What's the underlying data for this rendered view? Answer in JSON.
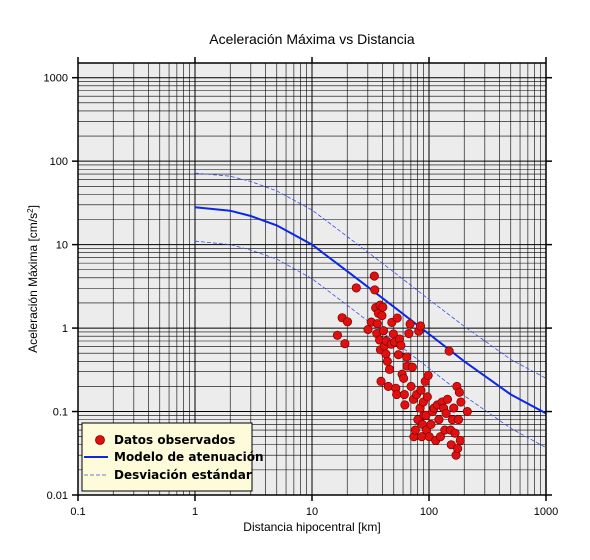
{
  "chart_data": {
    "type": "scatter",
    "title": "Aceleración Máxima vs Distancia",
    "xlabel": "Distancia hipocentral [km]",
    "ylabel_main": "Aceleración Máxima [cm/s",
    "ylabel_sup": "2",
    "ylabel_end": "]",
    "x_scale": "log",
    "y_scale": "log",
    "xlim": [
      0.1,
      1000
    ],
    "ylim": [
      0.01,
      1500
    ],
    "x_ticks": [
      {
        "value": 0.1,
        "label": "0.1"
      },
      {
        "value": 1,
        "label": "1"
      },
      {
        "value": 10,
        "label": "10"
      },
      {
        "value": 100,
        "label": "100"
      },
      {
        "value": 1000,
        "label": "1000"
      }
    ],
    "y_ticks": [
      {
        "value": 0.01,
        "label": "0.01"
      },
      {
        "value": 0.1,
        "label": "0.1"
      },
      {
        "value": 1,
        "label": "1"
      },
      {
        "value": 10,
        "label": "10"
      },
      {
        "value": 100,
        "label": "100"
      },
      {
        "value": 1000,
        "label": "1000"
      }
    ],
    "grid": true,
    "colors": {
      "plot_background": "#ececec",
      "grid": "#000000",
      "points": "#e01010",
      "model": "#0a28e6",
      "deviation": "#3a4fe8",
      "legend_background": "#fdfbd9"
    },
    "legend": {
      "placement": "bottom-left",
      "entries": [
        {
          "label": "Datos observados",
          "kind": "marker"
        },
        {
          "label": "Modelo de atenuación",
          "kind": "line"
        },
        {
          "label": "Desviación estándar",
          "kind": "dashed"
        }
      ]
    },
    "series": [
      {
        "name": "Datos observados",
        "kind": "scatter",
        "points": [
          [
            16.5,
            0.82
          ],
          [
            18.1,
            1.33
          ],
          [
            19.1,
            0.65
          ],
          [
            20.1,
            1.19
          ],
          [
            23.9,
            3.03
          ],
          [
            30.1,
            0.96
          ],
          [
            32.1,
            1.18
          ],
          [
            34.1,
            4.2
          ],
          [
            34.4,
            2.87
          ],
          [
            35.0,
            1.75
          ],
          [
            35.8,
            0.86
          ],
          [
            36.2,
            1.13
          ],
          [
            37.0,
            1.5
          ],
          [
            37.8,
            0.72
          ],
          [
            38.2,
            1.88
          ],
          [
            38.5,
            0.55
          ],
          [
            38.9,
            0.23
          ],
          [
            39.6,
            1.41
          ],
          [
            40.3,
            1.78
          ],
          [
            40.8,
            0.93
          ],
          [
            41.6,
            0.61
          ],
          [
            42.8,
            0.49
          ],
          [
            43.1,
            0.7
          ],
          [
            44.1,
            0.4
          ],
          [
            44.9,
            0.2
          ],
          [
            46.0,
            0.32
          ],
          [
            47.5,
            0.64
          ],
          [
            48.1,
            1.17
          ],
          [
            49.6,
            0.85
          ],
          [
            50.8,
            0.68
          ],
          [
            52.0,
            0.19
          ],
          [
            52.9,
            0.16
          ],
          [
            53.5,
            1.32
          ],
          [
            54.8,
            0.48
          ],
          [
            56.0,
            0.74
          ],
          [
            57.5,
            0.62
          ],
          [
            58.9,
            0.28
          ],
          [
            60.7,
            0.25
          ],
          [
            61.6,
            0.16
          ],
          [
            62.2,
            0.12
          ],
          [
            64.4,
            0.45
          ],
          [
            65.0,
            0.35
          ],
          [
            67.3,
            0.86
          ],
          [
            68.9,
            1.12
          ],
          [
            70.3,
            0.2
          ],
          [
            72.1,
            0.34
          ],
          [
            73.6,
            0.14
          ],
          [
            74.3,
            0.05
          ],
          [
            76.5,
            0.06
          ],
          [
            78.4,
            0.16
          ],
          [
            80.4,
            0.08
          ],
          [
            81.8,
            0.92
          ],
          [
            83.9,
            0.11
          ],
          [
            84.6,
            1.06
          ],
          [
            85.3,
            0.18
          ],
          [
            86.6,
            0.05
          ],
          [
            87.9,
            0.07
          ],
          [
            89.5,
            0.13
          ],
          [
            90.5,
            0.09
          ],
          [
            92.9,
            0.23
          ],
          [
            94.2,
            0.09
          ],
          [
            95.3,
            0.06
          ],
          [
            96.8,
            0.15
          ],
          [
            98.3,
            0.27
          ],
          [
            100.5,
            0.05
          ],
          [
            104.0,
            0.07
          ],
          [
            107.4,
            0.1
          ],
          [
            110.4,
            0.11
          ],
          [
            114.2,
            0.045
          ],
          [
            117.8,
            0.12
          ],
          [
            121.5,
            0.08
          ],
          [
            125.3,
            0.05
          ],
          [
            129.6,
            0.13
          ],
          [
            133.2,
            0.11
          ],
          [
            136.5,
            0.06
          ],
          [
            140.0,
            0.095
          ],
          [
            143.9,
            0.14
          ],
          [
            148.7,
            0.53
          ],
          [
            152.9,
            0.06
          ],
          [
            155.0,
            0.04
          ],
          [
            158.6,
            0.08
          ],
          [
            162.7,
            0.11
          ],
          [
            167.0,
            0.055
          ],
          [
            170.3,
            0.03
          ],
          [
            173.1,
            0.2
          ],
          [
            175.8,
            0.036
          ],
          [
            178.6,
            0.08
          ],
          [
            181.8,
            0.17
          ],
          [
            185.0,
            0.045
          ],
          [
            187.4,
            0.13
          ],
          [
            212.6,
            0.1
          ]
        ]
      },
      {
        "name": "Modelo de atenuación",
        "kind": "line",
        "points": [
          [
            1,
            28
          ],
          [
            2,
            25.5
          ],
          [
            3,
            22
          ],
          [
            5,
            17
          ],
          [
            10,
            10
          ],
          [
            20,
            4.8
          ],
          [
            50,
            1.8
          ],
          [
            100,
            0.85
          ],
          [
            200,
            0.4
          ],
          [
            500,
            0.16
          ],
          [
            1000,
            0.095
          ]
        ]
      },
      {
        "name": "Desviación estándar",
        "kind": "dashed",
        "points": [
          [
            1,
            72
          ],
          [
            2,
            66
          ],
          [
            3,
            57
          ],
          [
            5,
            44
          ],
          [
            10,
            26
          ],
          [
            20,
            12.5
          ],
          [
            50,
            4.7
          ],
          [
            100,
            2.2
          ],
          [
            200,
            1.05
          ],
          [
            500,
            0.42
          ],
          [
            1000,
            0.25
          ]
        ]
      },
      {
        "name": "Desviación estándar",
        "kind": "dashed",
        "points": [
          [
            1,
            11
          ],
          [
            2,
            10
          ],
          [
            3,
            8.6
          ],
          [
            5,
            6.7
          ],
          [
            10,
            3.9
          ],
          [
            20,
            1.88
          ],
          [
            50,
            0.7
          ],
          [
            100,
            0.33
          ],
          [
            200,
            0.155
          ],
          [
            500,
            0.063
          ],
          [
            1000,
            0.037
          ]
        ]
      }
    ]
  }
}
